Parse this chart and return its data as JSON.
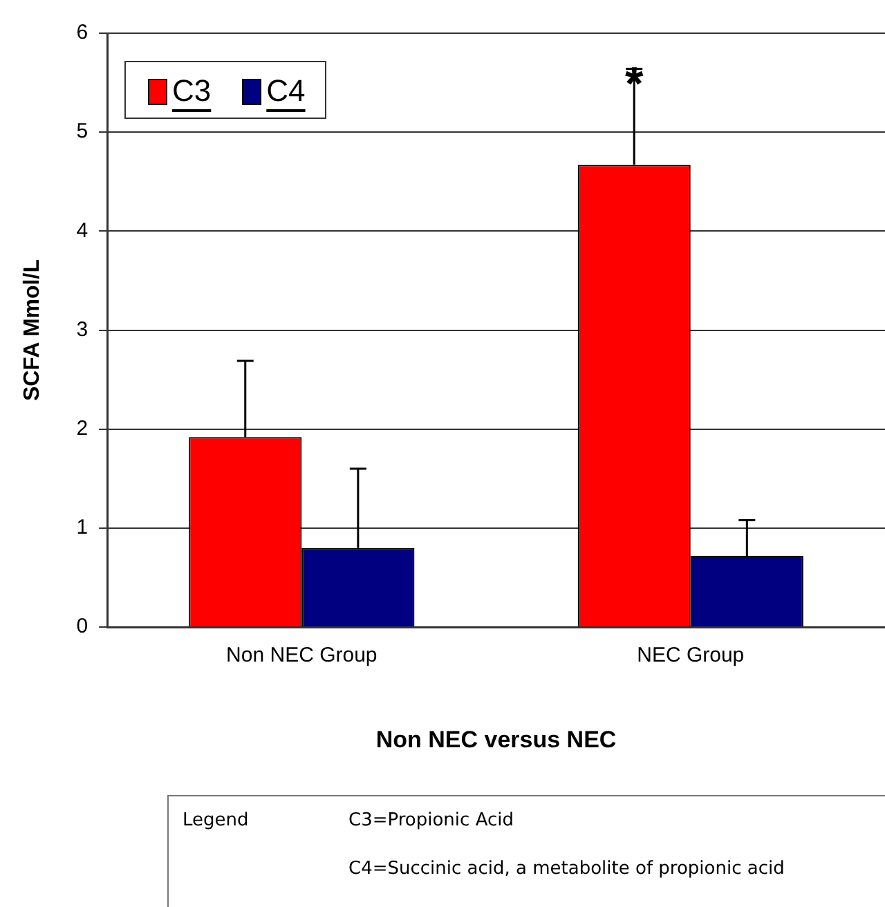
{
  "chart_data": {
    "type": "bar",
    "xlabel": "Non NEC versus NEC",
    "ylabel": "SCFA Mmol/L",
    "categories": [
      "Non NEC Group",
      "NEC Group"
    ],
    "series": [
      {
        "name": "C3",
        "color": "#ff0000",
        "values": [
          1.92,
          4.67
        ],
        "errors": [
          [
            1.92,
            2.69
          ],
          [
            4.67,
            5.64
          ]
        ]
      },
      {
        "name": "C4",
        "color": "#000080",
        "values": [
          0.8,
          0.72
        ],
        "errors": [
          [
            0.8,
            1.6
          ],
          [
            0.72,
            1.08
          ]
        ]
      }
    ],
    "ylim": [
      0,
      6
    ],
    "yticks": [
      0,
      1,
      2,
      3,
      4,
      5,
      6
    ],
    "grid": "y",
    "legend": "top left",
    "annotations": [
      "*",
      "Legend",
      "C3=Propionic Acid",
      "C4=Succinic acid, a metabolite of propionic acid"
    ]
  }
}
